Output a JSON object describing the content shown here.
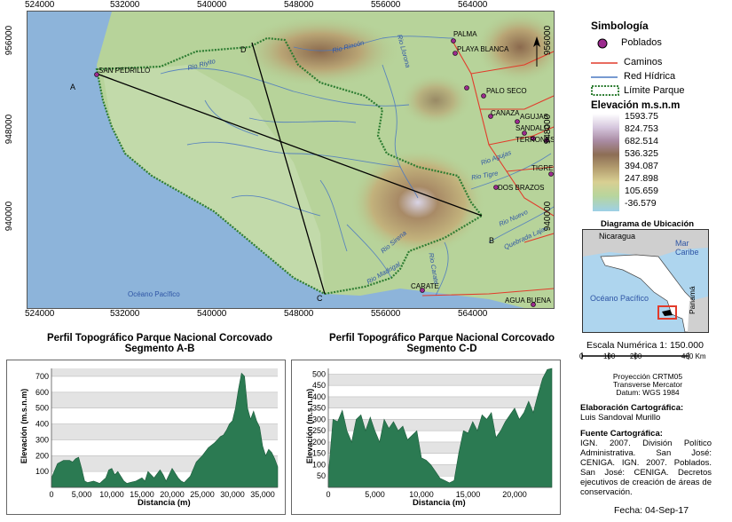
{
  "map": {
    "x_ticks": [
      "524000",
      "532000",
      "540000",
      "548000",
      "556000",
      "564000"
    ],
    "y_ticks": [
      "956000",
      "948000",
      "940000"
    ],
    "points": [
      "A",
      "B",
      "C",
      "D"
    ],
    "towns": [
      "PALMA",
      "PLAYA BLANCA",
      "PALO SECO",
      "CANAZA",
      "AGUJAS",
      "SANDALO",
      "TERRONES",
      "TIGRE",
      "DOS BRAZOS",
      "SAN PEDRILLO",
      "CARATE",
      "AGUA BUENA"
    ],
    "rivers": [
      "Rio Rincón",
      "Rio Riyito",
      "Rio Llorona",
      "Rio Agujas",
      "Rio Tigre",
      "Rio Nuevo",
      "Quebrada Lajas",
      "Rio Madrigal",
      "Rio Sirena",
      "Rio Carate"
    ],
    "ocean_label": "Océano Pacífico"
  },
  "legend": {
    "title": "Simbología",
    "poblados": "Poblados",
    "caminos": "Caminos",
    "red_hidrica": "Red Hídrica",
    "limite": "Límite Parque",
    "elev_title": "Elevación m.s.n.m",
    "elev_values": [
      "1593.75",
      "824.753",
      "682.514",
      "536.325",
      "394.087",
      "247.898",
      "105.659",
      "-36.579"
    ],
    "colors": {
      "poblado": "#9b2a8e",
      "camino": "#e23b2b",
      "rio": "#4a78c2",
      "limite": "#2e7d32"
    }
  },
  "location": {
    "title": "Diagrama de Ubicación",
    "nicaragua": "Nicaragua",
    "mar_caribe": "Mar\nCaribe",
    "oceano": "Océano Pacífico",
    "panama": "Panamá"
  },
  "scale": {
    "title": "Escala Numérica 1: 150.000",
    "ticks": [
      "0",
      "100",
      "200",
      "400 Km"
    ],
    "projection": [
      "Proyección CRTM05",
      "Transverse Mercator",
      "Datum: WGS 1984"
    ]
  },
  "credits": {
    "elab_label": "Elaboración Cartográfica:",
    "elab_name": "Luis Sandoval Murillo",
    "fuente_label": "Fuente Cartográfica:",
    "fuente_text": "IGN. 2007. División Político Administrativa. San José: CENIGA. IGN. 2007. Poblados. San José: CENIGA. Decretos ejecutivos de creación de áreas de conservación.",
    "fecha": "Fecha: 04-Sep-17"
  },
  "profile_ab": {
    "title_line1": "Perfil Topográfico Parque Nacional  Corcovado",
    "title_line2": "Segmento A-B",
    "ylabel": "Elevación (m.s.n.m)",
    "xlabel": "Distancia (m)"
  },
  "profile_cd": {
    "title_line1": "Perfil Topográfico Parque Nacional  Corcovado",
    "title_line2": "Segmento C-D",
    "ylabel": "Elevación (m.s.n.m)",
    "xlabel": "Distancia (m)"
  },
  "chart_data": [
    {
      "type": "area",
      "title": "Perfil Topográfico Parque Nacional  Corcovado Segmento A-B",
      "xlabel": "Distancia (m)",
      "ylabel": "Elevación (m.s.n.m)",
      "xlim": [
        0,
        37500
      ],
      "ylim": [
        0,
        750
      ],
      "x_ticks": [
        "0",
        "5,000",
        "10,000",
        "15,000",
        "20,000",
        "25,000",
        "30,000",
        "35,000"
      ],
      "y_ticks": [
        "100",
        "200",
        "300",
        "400",
        "500",
        "600",
        "700"
      ],
      "x": [
        0,
        1000,
        2000,
        3000,
        3500,
        4000,
        4500,
        5000,
        5500,
        6000,
        7000,
        8000,
        9000,
        9500,
        10000,
        10500,
        11000,
        12000,
        12500,
        13000,
        14000,
        15000,
        15500,
        16000,
        17000,
        18000,
        18500,
        19000,
        20000,
        21000,
        21500,
        22000,
        23000,
        24000,
        24500,
        25000,
        26000,
        27000,
        27500,
        28000,
        28500,
        29000,
        29500,
        30000,
        30500,
        31000,
        31500,
        32000,
        32500,
        33000,
        33500,
        34000,
        34500,
        35000,
        35500,
        36000,
        36500,
        37000,
        37500
      ],
      "y": [
        60,
        150,
        170,
        170,
        160,
        180,
        190,
        120,
        40,
        30,
        40,
        25,
        60,
        110,
        120,
        80,
        100,
        40,
        25,
        30,
        40,
        60,
        40,
        100,
        60,
        110,
        80,
        40,
        120,
        60,
        40,
        30,
        70,
        160,
        180,
        200,
        250,
        280,
        300,
        320,
        330,
        360,
        400,
        420,
        500,
        620,
        720,
        700,
        500,
        430,
        480,
        420,
        380,
        260,
        200,
        240,
        220,
        180,
        130
      ]
    },
    {
      "type": "area",
      "title": "Perfil Topográfico Parque Nacional  Corcovado Segmento C-D",
      "xlabel": "Distancia (m)",
      "ylabel": "Elevación (m.s.n.m)",
      "xlim": [
        0,
        24000
      ],
      "ylim": [
        0,
        525
      ],
      "x_ticks": [
        "0",
        "5,000",
        "10,000",
        "15,000",
        "20,000"
      ],
      "y_ticks": [
        "50",
        "100",
        "150",
        "200",
        "250",
        "300",
        "350",
        "400",
        "450",
        "500"
      ],
      "x": [
        0,
        500,
        1000,
        1500,
        2000,
        2500,
        3000,
        3500,
        4000,
        4500,
        5000,
        5500,
        6000,
        6500,
        7000,
        7500,
        8000,
        8500,
        9000,
        9500,
        10000,
        10500,
        11000,
        11500,
        12000,
        12500,
        13000,
        13500,
        14000,
        14500,
        15000,
        15500,
        16000,
        16500,
        17000,
        17500,
        18000,
        18500,
        19000,
        19500,
        20000,
        20500,
        21000,
        21500,
        22000,
        22500,
        23000,
        23500,
        24000
      ],
      "y": [
        50,
        300,
        290,
        340,
        250,
        200,
        300,
        320,
        250,
        310,
        250,
        200,
        300,
        260,
        290,
        250,
        270,
        210,
        230,
        250,
        130,
        120,
        100,
        70,
        40,
        30,
        20,
        30,
        150,
        250,
        240,
        290,
        250,
        320,
        300,
        330,
        220,
        250,
        290,
        320,
        350,
        300,
        330,
        380,
        330,
        410,
        480,
        520,
        525
      ]
    }
  ]
}
